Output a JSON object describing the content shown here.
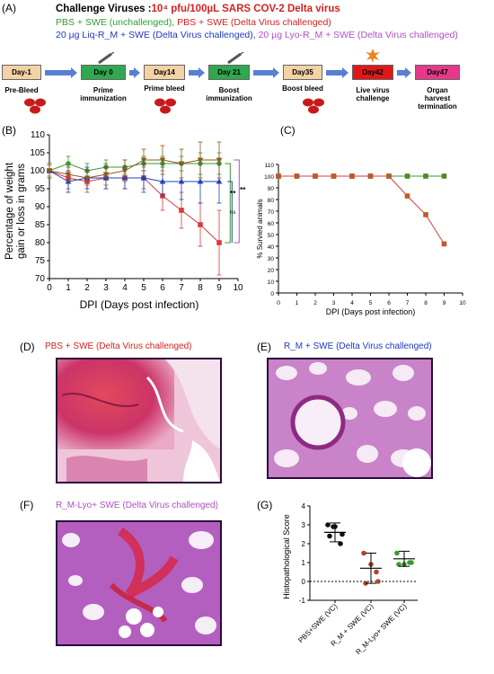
{
  "panel_labels": {
    "a": "(A)",
    "b": "(B)",
    "c": "(C)",
    "d": "(D)",
    "e": "(E)",
    "f": "(F)",
    "g": "(G)"
  },
  "header": {
    "title_prefix": "Challenge Viruses :",
    "title_virus": "10⁴ pfu/100µL SARS COV-2 Delta virus",
    "line2_green": "PBS + SWE (unchallenged),",
    "line2_red": " PBS + SWE (Delta Virus challenged)",
    "line3_blue": "20 µg Liq-R_M + SWE (Delta Virus challenged),",
    "line3_purple": " 20 µg Lyo-R_M + SWE (Delta Virus challenged)"
  },
  "timeline": [
    {
      "box": "Day-1",
      "label": "Pre-Bleed",
      "color": "#f3d2a6"
    },
    {
      "box": "Day 0",
      "label": "Prime\nimmunization",
      "color": "#2fa84f"
    },
    {
      "box": "Day14",
      "label": "Prime bleed",
      "color": "#f3d2a6"
    },
    {
      "box": "Day 21",
      "label": "Boost\nimmunization",
      "color": "#2fa84f"
    },
    {
      "box": "Day35",
      "label": "Boost bleed",
      "color": "#f3d2a6"
    },
    {
      "box": "Day42",
      "label": "Live virus\nchallenge",
      "color": "#e01818"
    },
    {
      "box": "Day47",
      "label": "Organ\nharvest\ntermination",
      "color": "#e6398a"
    }
  ],
  "colors": {
    "green": "#3a9a2e",
    "red": "#d93a3a",
    "blue": "#1f3fbf",
    "purple": "#b14fc8",
    "brown": "#8a5a1c"
  },
  "chart_data": [
    {
      "id": "B",
      "type": "line",
      "xlabel": "DPI (Days post infection)",
      "ylabel": "Percentage of weight\ngain or loss in grams",
      "x": [
        0,
        1,
        2,
        3,
        4,
        5,
        6,
        7,
        8,
        9
      ],
      "xlim": [
        0,
        10
      ],
      "ylim": [
        70,
        110
      ],
      "xticks": [
        0,
        1,
        2,
        3,
        4,
        5,
        6,
        7,
        8,
        9,
        10
      ],
      "yticks": [
        70,
        75,
        80,
        85,
        90,
        95,
        100,
        105,
        110
      ],
      "series": [
        {
          "color": "#3a9a2e",
          "marker": "circle",
          "values": [
            100,
            102,
            100,
            101,
            101,
            102,
            102,
            102,
            102,
            102
          ],
          "err": [
            1.5,
            2,
            2,
            2,
            2,
            2,
            2,
            2,
            3,
            3
          ]
        },
        {
          "color": "#d93a3a",
          "marker": "square",
          "values": [
            100,
            98,
            97,
            98,
            98,
            98,
            93,
            89,
            85,
            80
          ],
          "err": [
            2,
            3,
            3,
            3,
            3,
            3,
            4,
            5,
            6,
            9
          ]
        },
        {
          "color": "#1f3fbf",
          "marker": "triangle",
          "values": [
            100,
            97,
            98,
            98,
            98,
            98,
            97,
            97,
            97,
            97
          ],
          "err": [
            2,
            3,
            3,
            3,
            3,
            4,
            4,
            5,
            6,
            6
          ]
        },
        {
          "color": "#8a5a1c",
          "marker": "triangle-down",
          "values": [
            100,
            99,
            98,
            99,
            100,
            103,
            103,
            102,
            103,
            103
          ],
          "err": [
            2,
            2,
            2,
            3,
            3,
            3,
            4,
            4,
            5,
            5
          ]
        }
      ],
      "annotations": [
        "**",
        "**",
        "ns"
      ]
    },
    {
      "id": "C",
      "type": "line",
      "xlabel": "DPI (Days post infection)",
      "ylabel": "% Survied animals",
      "x": [
        0,
        1,
        2,
        3,
        4,
        5,
        6,
        7,
        8,
        9
      ],
      "xlim": [
        0,
        10
      ],
      "ylim": [
        0,
        110
      ],
      "xticks": [
        0,
        1,
        2,
        3,
        4,
        5,
        6,
        7,
        8,
        9,
        10
      ],
      "yticks": [
        0,
        10,
        20,
        30,
        40,
        50,
        60,
        70,
        80,
        90,
        100,
        110
      ],
      "series": [
        {
          "color": "#3a9a2e",
          "values": [
            100,
            100,
            100,
            100,
            100,
            100,
            100,
            100,
            100,
            100
          ]
        },
        {
          "color": "#d93a3a",
          "values": [
            100,
            100,
            100,
            100,
            100,
            100,
            100,
            83,
            67,
            42
          ]
        }
      ]
    },
    {
      "id": "G",
      "type": "scatter",
      "ylabel": "Histopathological Score",
      "categories": [
        "PBS+SWE (VC)",
        "R_M + SWE (VC)",
        "R_M-Lyo+ SWE (VC)"
      ],
      "ylim": [
        -1,
        4
      ],
      "yticks": [
        -1,
        0,
        1,
        2,
        3,
        4
      ],
      "groups": [
        {
          "color": "#111111",
          "points": [
            3,
            3,
            2.5,
            2.5,
            2,
            3
          ],
          "mean": 2.6,
          "sd": 0.5
        },
        {
          "color": "#b0452a",
          "points": [
            1.5,
            1,
            0,
            0,
            0.5
          ],
          "mean": 0.7,
          "sd": 0.8
        },
        {
          "color": "#3a9a2e",
          "points": [
            1.5,
            1,
            1,
            1,
            1
          ],
          "mean": 1.2,
          "sd": 0.4
        }
      ]
    }
  ],
  "histology": {
    "d_title_main": "PBS + SWE ",
    "d_title_sub": "(Delta Virus challenged)",
    "e_title_main": "R_M + SWE ",
    "e_title_sub": "(Delta Virus challenged)",
    "f_title_main": "R_M-Lyo+ SWE ",
    "f_title_sub": "(Delta Virus challenged)"
  }
}
